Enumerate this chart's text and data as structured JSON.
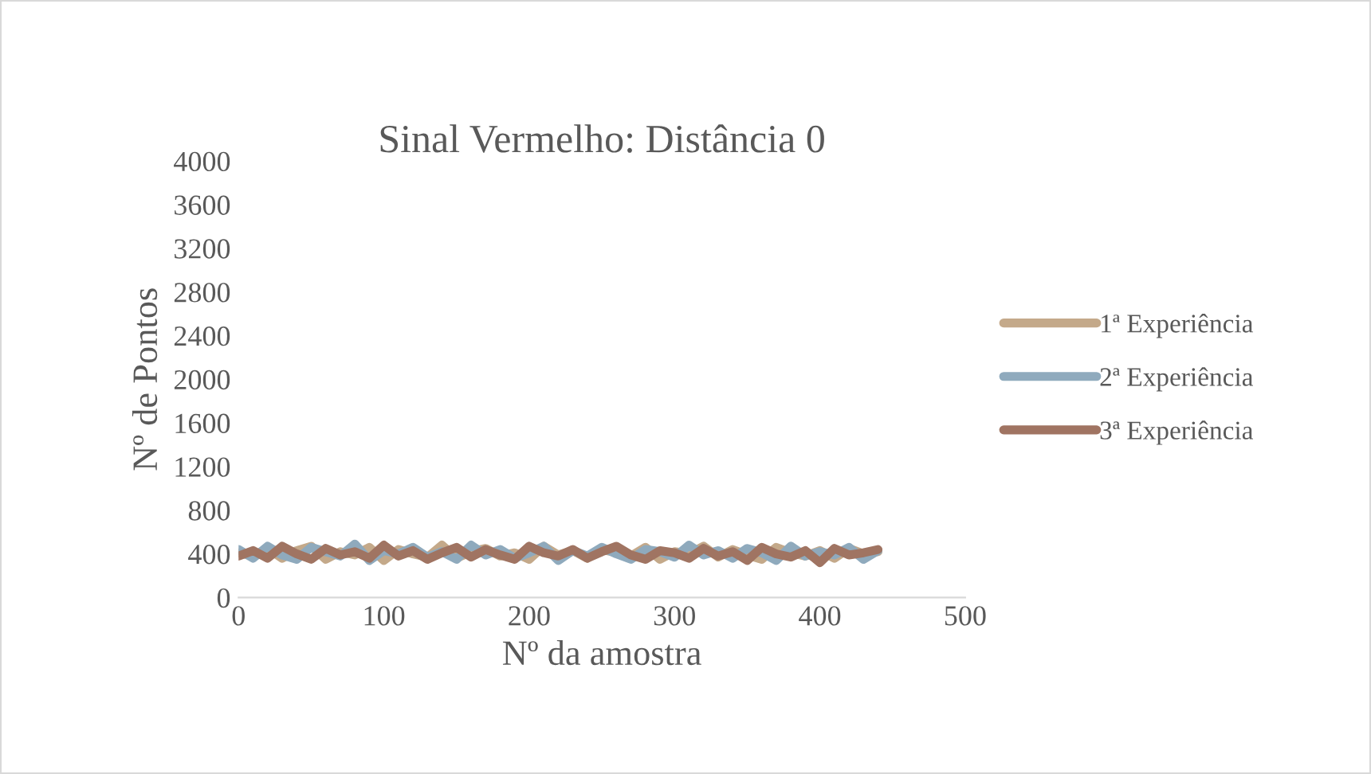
{
  "chart_data": {
    "type": "line",
    "title": "Sinal Vermelho: Distância 0",
    "xlabel": "Nº da amostra",
    "ylabel": "Nº de Pontos",
    "x": [
      0,
      10,
      20,
      30,
      40,
      50,
      60,
      70,
      80,
      90,
      100,
      110,
      120,
      130,
      140,
      150,
      160,
      170,
      180,
      190,
      200,
      210,
      220,
      230,
      240,
      250,
      260,
      270,
      280,
      290,
      300,
      310,
      320,
      330,
      340,
      350,
      360,
      370,
      380,
      390,
      400,
      410,
      420,
      430,
      440
    ],
    "series": [
      {
        "name": "1ª Experiência",
        "color": "#c4a98a",
        "values": [
          410,
          380,
          450,
          360,
          430,
          470,
          350,
          420,
          390,
          460,
          340,
          440,
          400,
          370,
          480,
          360,
          420,
          450,
          380,
          410,
          350,
          470,
          390,
          430,
          360,
          440,
          410,
          380,
          460,
          350,
          420,
          400,
          470,
          370,
          440,
          390,
          350,
          460,
          410,
          380,
          430,
          360,
          450,
          400,
          420
        ]
      },
      {
        "name": "2ª Experiência",
        "color": "#8faabd",
        "values": [
          440,
          360,
          470,
          390,
          350,
          460,
          420,
          380,
          490,
          340,
          430,
          400,
          460,
          370,
          420,
          350,
          480,
          390,
          440,
          360,
          410,
          470,
          340,
          430,
          380,
          460,
          400,
          350,
          440,
          420,
          370,
          480,
          390,
          430,
          360,
          450,
          410,
          340,
          470,
          380,
          420,
          390,
          460,
          350,
          430
        ]
      },
      {
        "name": "3ª Experiência",
        "color": "#a07462",
        "values": [
          380,
          430,
          360,
          470,
          400,
          350,
          450,
          390,
          420,
          360,
          480,
          380,
          430,
          350,
          410,
          460,
          370,
          440,
          390,
          350,
          470,
          410,
          380,
          440,
          360,
          420,
          470,
          390,
          350,
          430,
          410,
          360,
          450,
          380,
          420,
          340,
          460,
          400,
          370,
          430,
          320,
          450,
          390,
          410,
          440
        ]
      }
    ],
    "xlim": [
      0,
      500
    ],
    "xticks": [
      0,
      100,
      200,
      300,
      400,
      500
    ],
    "ylim": [
      0,
      4000
    ],
    "yticks": [
      0,
      400,
      800,
      1200,
      1600,
      2000,
      2400,
      2800,
      3200,
      3600,
      4000
    ],
    "grid": false,
    "legend": "right",
    "marker": "none",
    "line_style": "solid"
  }
}
